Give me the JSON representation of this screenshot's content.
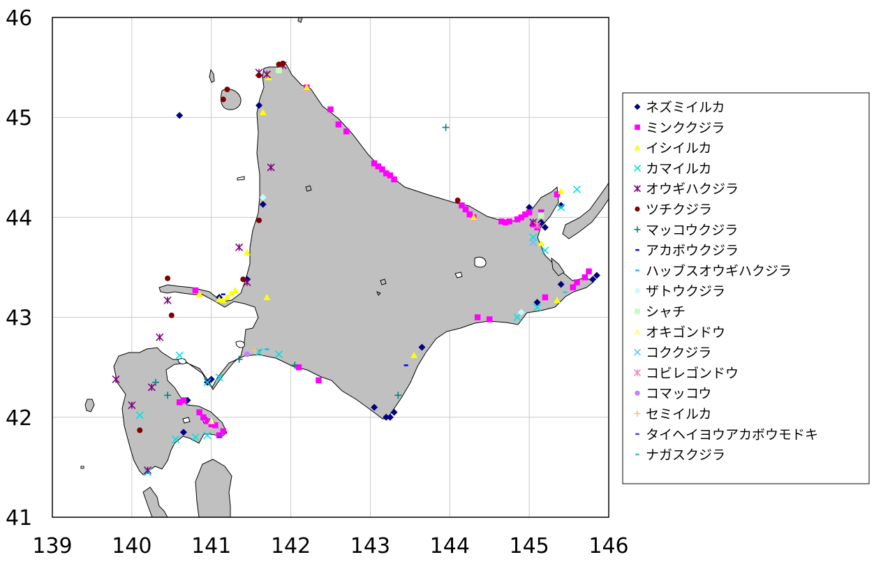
{
  "chart_data": {
    "type": "scatter",
    "title": "",
    "xlabel": "",
    "ylabel": "",
    "xlim": [
      139,
      146
    ],
    "ylim": [
      41,
      46
    ],
    "x_ticks": [
      "139",
      "140",
      "141",
      "142",
      "143",
      "144",
      "145",
      "146"
    ],
    "y_ticks": [
      "41",
      "42",
      "43",
      "44",
      "45",
      "46"
    ],
    "grid": true,
    "legend_position": "right",
    "land_color": "#c0c0c0",
    "series": [
      {
        "name": "ネズミイルカ",
        "marker": "diamond",
        "color": "#000080",
        "points": [
          [
            140.6,
            45.02
          ],
          [
            141.6,
            45.12
          ],
          [
            141.65,
            44.13
          ],
          [
            141.45,
            43.38
          ],
          [
            141.1,
            43.2
          ],
          [
            140.7,
            42.17
          ],
          [
            140.65,
            41.85
          ],
          [
            140.95,
            42.35
          ],
          [
            141.0,
            42.38
          ],
          [
            143.05,
            42.1
          ],
          [
            143.2,
            42.0
          ],
          [
            143.25,
            42.0
          ],
          [
            143.3,
            42.05
          ],
          [
            143.65,
            42.7
          ],
          [
            145.0,
            44.1
          ],
          [
            145.15,
            43.95
          ],
          [
            145.2,
            43.9
          ],
          [
            145.4,
            44.12
          ],
          [
            145.4,
            43.33
          ],
          [
            145.1,
            43.15
          ],
          [
            145.85,
            43.42
          ],
          [
            145.8,
            43.38
          ]
        ]
      },
      {
        "name": "ミンククジラ",
        "marker": "square",
        "color": "#ff00ff",
        "points": [
          [
            142.2,
            45.3
          ],
          [
            142.5,
            45.08
          ],
          [
            142.6,
            44.93
          ],
          [
            142.7,
            44.86
          ],
          [
            143.05,
            44.54
          ],
          [
            143.1,
            44.51
          ],
          [
            143.15,
            44.48
          ],
          [
            143.2,
            44.44
          ],
          [
            143.25,
            44.42
          ],
          [
            143.3,
            44.38
          ],
          [
            144.15,
            44.12
          ],
          [
            144.2,
            44.08
          ],
          [
            144.25,
            44.03
          ],
          [
            144.3,
            44.0
          ],
          [
            144.65,
            43.96
          ],
          [
            144.7,
            43.95
          ],
          [
            144.75,
            43.96
          ],
          [
            144.85,
            43.98
          ],
          [
            144.9,
            44.0
          ],
          [
            144.95,
            44.03
          ],
          [
            145.0,
            44.05
          ],
          [
            145.05,
            43.93
          ],
          [
            145.1,
            43.9
          ],
          [
            145.15,
            44.05
          ],
          [
            145.35,
            44.23
          ],
          [
            145.6,
            43.35
          ],
          [
            145.7,
            43.4
          ],
          [
            145.75,
            43.46
          ],
          [
            145.55,
            43.3
          ],
          [
            145.2,
            43.2
          ],
          [
            144.35,
            43.0
          ],
          [
            144.5,
            42.98
          ],
          [
            142.1,
            42.5
          ],
          [
            142.35,
            42.37
          ],
          [
            140.6,
            42.15
          ],
          [
            140.65,
            42.17
          ],
          [
            140.85,
            42.05
          ],
          [
            140.9,
            42.0
          ],
          [
            140.95,
            41.96
          ],
          [
            141.0,
            41.93
          ],
          [
            141.05,
            41.92
          ],
          [
            141.1,
            41.82
          ],
          [
            141.15,
            41.86
          ],
          [
            140.8,
            43.27
          ]
        ]
      },
      {
        "name": "イシイルカ",
        "marker": "triangle",
        "color": "#ffff00",
        "points": [
          [
            141.65,
            45.05
          ],
          [
            141.72,
            45.4
          ],
          [
            142.2,
            45.3
          ],
          [
            141.45,
            43.65
          ],
          [
            141.3,
            43.27
          ],
          [
            141.25,
            43.24
          ],
          [
            141.2,
            43.2
          ],
          [
            141.15,
            43.17
          ],
          [
            141.1,
            43.18
          ],
          [
            141.7,
            43.2
          ],
          [
            140.85,
            43.23
          ],
          [
            143.55,
            42.62
          ],
          [
            144.3,
            44.0
          ],
          [
            145.15,
            43.74
          ],
          [
            145.4,
            44.26
          ],
          [
            145.35,
            43.17
          ]
        ]
      },
      {
        "name": "カマイルカ",
        "marker": "x",
        "color": "#00e0e0",
        "points": [
          [
            145.6,
            44.28
          ],
          [
            145.4,
            44.1
          ],
          [
            145.2,
            43.67
          ],
          [
            145.05,
            43.8
          ],
          [
            144.85,
            43.0
          ],
          [
            145.1,
            43.1
          ],
          [
            140.6,
            42.62
          ],
          [
            140.95,
            42.35
          ],
          [
            141.1,
            42.4
          ],
          [
            141.6,
            42.65
          ],
          [
            141.85,
            42.63
          ],
          [
            140.55,
            41.78
          ],
          [
            140.95,
            41.82
          ],
          [
            140.8,
            41.8
          ],
          [
            140.2,
            41.45
          ],
          [
            140.1,
            42.02
          ]
        ]
      },
      {
        "name": "オウギハクジラ",
        "marker": "asterisk",
        "color": "#800080",
        "points": [
          [
            141.6,
            45.45
          ],
          [
            141.7,
            45.43
          ],
          [
            141.9,
            45.52
          ],
          [
            141.75,
            44.5
          ],
          [
            141.35,
            43.7
          ],
          [
            141.45,
            43.35
          ],
          [
            140.45,
            43.17
          ],
          [
            140.35,
            42.8
          ],
          [
            139.8,
            42.38
          ],
          [
            140.0,
            42.12
          ],
          [
            140.25,
            42.3
          ],
          [
            140.2,
            41.47
          ],
          [
            145.05,
            43.95
          ]
        ]
      },
      {
        "name": "ツチクジラ",
        "marker": "circle",
        "color": "#800000",
        "points": [
          [
            141.2,
            45.28
          ],
          [
            141.15,
            45.18
          ],
          [
            141.6,
            45.42
          ],
          [
            141.85,
            45.53
          ],
          [
            141.9,
            45.54
          ],
          [
            141.6,
            43.97
          ],
          [
            141.4,
            43.38
          ],
          [
            140.45,
            43.39
          ],
          [
            140.5,
            43.02
          ],
          [
            140.1,
            41.87
          ],
          [
            144.1,
            44.17
          ]
        ]
      },
      {
        "name": "マッコウクジラ",
        "marker": "plus",
        "color": "#008080",
        "points": [
          [
            143.95,
            44.9
          ],
          [
            141.35,
            42.58
          ],
          [
            140.45,
            42.22
          ],
          [
            140.3,
            42.35
          ],
          [
            143.35,
            42.22
          ],
          [
            142.05,
            42.52
          ]
        ]
      },
      {
        "name": "アカボウクジラ",
        "marker": "dash",
        "color": "#0000ff",
        "points": [
          [
            143.45,
            42.52
          ],
          [
            141.15,
            43.23
          ]
        ]
      },
      {
        "name": "ハッブスオウギハクジラ",
        "marker": "dash",
        "color": "#00c0ff",
        "points": [
          [
            141.7,
            42.68
          ],
          [
            141.6,
            42.67
          ]
        ]
      },
      {
        "name": "ザトウクジラ",
        "marker": "diamond",
        "color": "#c0ffff",
        "points": [
          [
            141.65,
            44.2
          ],
          [
            144.9,
            43.05
          ]
        ]
      },
      {
        "name": "シャチ",
        "marker": "square",
        "color": "#c0ffc0",
        "points": [
          [
            141.85,
            45.47
          ],
          [
            145.15,
            44.02
          ]
        ]
      },
      {
        "name": "オキゴンドウ",
        "marker": "triangle",
        "color": "#ffff80",
        "points": [
          [
            141.0,
            41.96
          ]
        ]
      },
      {
        "name": "コククジラ",
        "marker": "x",
        "color": "#60c0ff",
        "points": [
          [
            145.05,
            43.75
          ]
        ]
      },
      {
        "name": "コビレゴンドウ",
        "marker": "asterisk",
        "color": "#ff80c0",
        "points": [
          [
            145.1,
            43.92
          ]
        ]
      },
      {
        "name": "コマッコウ",
        "marker": "circle",
        "color": "#c080ff",
        "points": [
          [
            141.45,
            42.63
          ]
        ]
      },
      {
        "name": "セミイルカ",
        "marker": "plus",
        "color": "#ffc080",
        "points": [
          [
            141.55,
            42.67
          ]
        ]
      },
      {
        "name": "タイヘイヨウアカボウモドキ",
        "marker": "dash",
        "color": "#4040ff",
        "points": [
          [
            141.1,
            41.8
          ]
        ]
      },
      {
        "name": "ナガスクジラ",
        "marker": "dash",
        "color": "#40c0c0",
        "points": [
          [
            145.45,
            43.25
          ]
        ]
      }
    ]
  }
}
